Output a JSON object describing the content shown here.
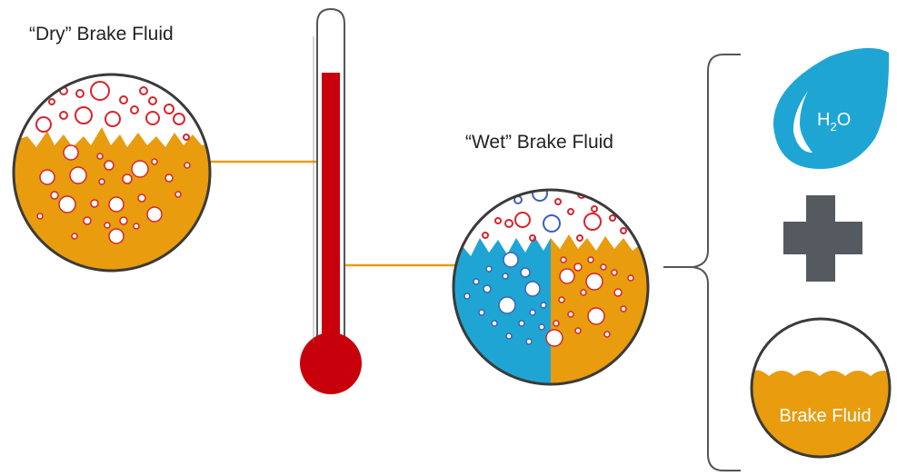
{
  "labels": {
    "dry": "“Dry” Brake Fluid",
    "wet": "“Wet” Brake Fluid",
    "brake_fluid": "Brake Fluid",
    "water": "H",
    "water_sub": "2",
    "water_tail": "O"
  },
  "colors": {
    "fluid_orange": "#E89C0E",
    "water_blue": "#1FA5D4",
    "mercury_red": "#C7000B",
    "bubble_outline_red": "#D9242B",
    "bubble_outline_blue": "#3C61B8",
    "plus_gray": "#555a60",
    "connector_orange": "#E89C0E"
  },
  "icons": {
    "thermometer": "thermometer-icon",
    "water_drop": "water-drop-icon",
    "plus": "plus-icon",
    "bracket": "bracket-icon"
  }
}
